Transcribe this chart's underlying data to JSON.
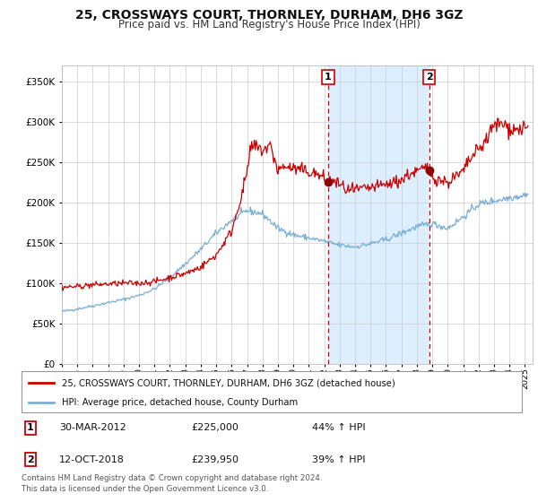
{
  "title": "25, CROSSWAYS COURT, THORNLEY, DURHAM, DH6 3GZ",
  "subtitle": "Price paid vs. HM Land Registry's House Price Index (HPI)",
  "legend_line1": "25, CROSSWAYS COURT, THORNLEY, DURHAM, DH6 3GZ (detached house)",
  "legend_line2": "HPI: Average price, detached house, County Durham",
  "footnote": "Contains HM Land Registry data © Crown copyright and database right 2024.\nThis data is licensed under the Open Government Licence v3.0.",
  "transaction1_date": "30-MAR-2012",
  "transaction1_price": 225000,
  "transaction1_hpi": "44% ↑ HPI",
  "transaction2_date": "12-OCT-2018",
  "transaction2_price": 239950,
  "transaction2_hpi": "39% ↑ HPI",
  "red_line_color": "#cc0000",
  "blue_line_color": "#7aafd4",
  "dot_color": "#8b0000",
  "background_color": "#ffffff",
  "grid_color": "#cccccc",
  "shade_color": "#ddeeff",
  "vline_color": "#cc0000",
  "title_fontsize": 10,
  "subtitle_fontsize": 8.5,
  "ylim": [
    0,
    370000
  ],
  "xlim_start": 1995.0,
  "xlim_end": 2025.5,
  "transaction1_x": 2012.25,
  "transaction2_x": 2018.79
}
